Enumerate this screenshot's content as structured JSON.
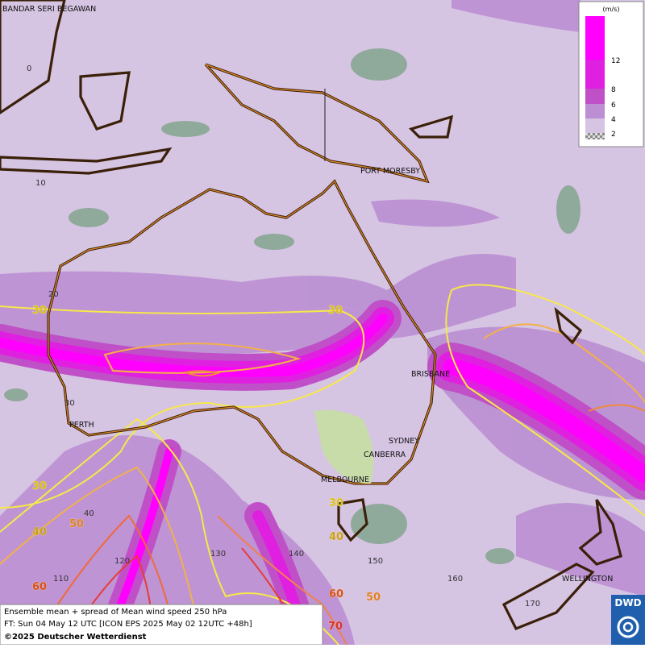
{
  "map": {
    "cities": [
      "BANDAR SERI BEGAWAN",
      "PORT MORESBY",
      "BRISBANE",
      "PERTH",
      "SYDNEY",
      "CANBERRA",
      "MELBOURNE",
      "WELLINGTON"
    ],
    "grid_labels": [
      "0",
      "10",
      "20",
      "30",
      "40",
      "110",
      "120",
      "130",
      "140",
      "150",
      "160",
      "170"
    ],
    "contour_labels": [
      "30",
      "30",
      "30",
      "40",
      "50",
      "60",
      "30",
      "40",
      "60",
      "50",
      "70"
    ],
    "legend": {
      "unit": "(m/s)",
      "labels": [
        "12",
        "8",
        "6",
        "4",
        "2"
      ]
    },
    "info": {
      "line1": "Ensemble mean + spread of Mean wind speed 250 hPa",
      "line2": "FT: Sun 04 May 12 UTC [ICON EPS 2025 May 02 12UTC +48h]",
      "line3": "©2025 Deutscher Wetterdienst"
    },
    "logo": "DWD"
  }
}
